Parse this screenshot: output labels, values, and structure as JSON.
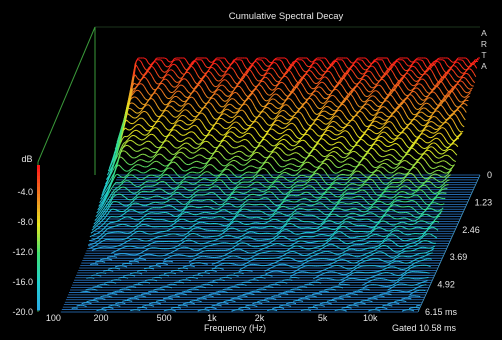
{
  "chart_data": {
    "type": "waterfall",
    "title": "Cumulative Spectral Decay",
    "brand": "ARTA",
    "xlabel": "Frequency (Hz)",
    "x_ticks": [
      "100",
      "200",
      "500",
      "1k",
      "2k",
      "5k",
      "10k"
    ],
    "x_tick_values": [
      100,
      200,
      500,
      1000,
      2000,
      5000,
      10000
    ],
    "xlim": [
      80,
      20000
    ],
    "x_scale": "log",
    "ylabel": "dB",
    "y_ticks": [
      "-4.0",
      "-8.0",
      "-12.0",
      "-16.0",
      "-20.0"
    ],
    "y_tick_values": [
      -4,
      -8,
      -12,
      -16,
      -20
    ],
    "ylim": [
      -20,
      0
    ],
    "z_ticks": [
      "0",
      "1.23",
      "2.46",
      "3.69",
      "4.92",
      "6.15 ms"
    ],
    "z_tick_values": [
      0,
      1.23,
      2.46,
      3.69,
      4.92,
      6.15
    ],
    "zlim": [
      0,
      6.15
    ],
    "gate_label": "Gated 10.58 ms",
    "slices": 60,
    "colormap": [
      "#2aa8e8",
      "#20d0d0",
      "#40e070",
      "#e8e820",
      "#f08020",
      "#ff1818"
    ],
    "floor_color": "#2a78c8",
    "axis_color": "#3a9a3a"
  }
}
